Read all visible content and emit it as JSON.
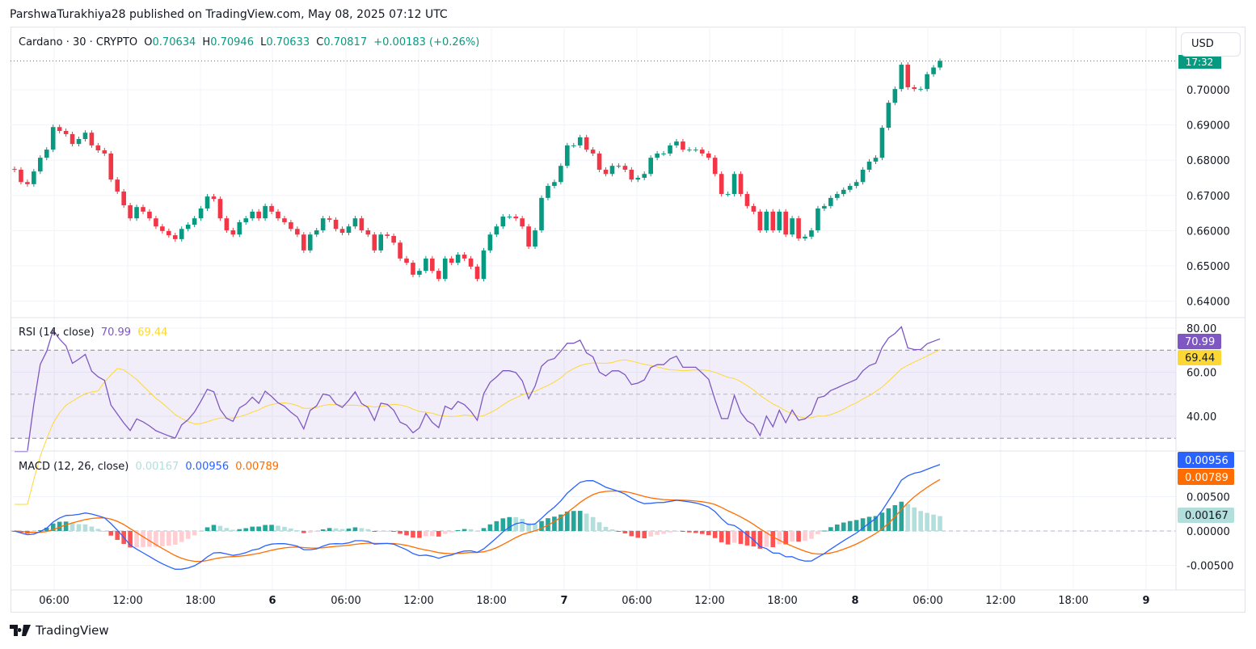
{
  "header": {
    "published": "ParshwaTurakhiya28 published on TradingView.com, May 08, 2025 07:12 UTC"
  },
  "legend": {
    "symbol": "Cardano · 30 · CRYPTO",
    "o_label": "O",
    "o": "0.70634",
    "h_label": "H",
    "h": "0.70946",
    "l_label": "L",
    "l": "0.70633",
    "c_label": "C",
    "c": "0.70817",
    "change": "+0.00183 (+0.26%)"
  },
  "currency_button": "USD",
  "last_price_badge": "17:32",
  "rsi_legend": {
    "title": "RSI (14, close)",
    "rsi": "70.99",
    "ma": "69.44"
  },
  "macd_legend": {
    "title": "MACD (12, 26, close)",
    "hist": "0.00167",
    "macd": "0.00956",
    "signal": "0.00789"
  },
  "branding": "TradingView",
  "colors": {
    "up": "#089981",
    "down": "#f23645",
    "rsi": "#7e57c2",
    "rsi_ma": "#fdd835",
    "macd": "#2962ff",
    "signal": "#ff6d00",
    "hist_up_strong": "#26a69a",
    "hist_up_weak": "#b2dfdb",
    "hist_down_strong": "#ff5252",
    "hist_down_weak": "#ffcdd2",
    "rsi_band": "#7e57c2"
  },
  "chart_data": [
    {
      "type": "candlestick",
      "interval": "30",
      "price_axis": {
        "ticks": [
          "0.70000",
          "0.69000",
          "0.68000",
          "0.67000",
          "0.66000",
          "0.65000",
          "0.64000"
        ],
        "ylim": [
          0.6375,
          0.7115
        ]
      },
      "x_ticks": [
        "06:00",
        "12:00",
        "18:00",
        "6",
        "06:00",
        "12:00",
        "18:00",
        "7",
        "06:00",
        "12:00",
        "18:00",
        "8",
        "06:00",
        "12:00",
        "18:00",
        "9"
      ],
      "first_open": 0.6775,
      "close": [
        0.6773,
        0.6738,
        0.6732,
        0.6768,
        0.6807,
        0.683,
        0.6894,
        0.6883,
        0.6874,
        0.6846,
        0.686,
        0.6878,
        0.6842,
        0.6828,
        0.6819,
        0.6745,
        0.6711,
        0.6672,
        0.6635,
        0.6667,
        0.6654,
        0.6635,
        0.6612,
        0.6599,
        0.6587,
        0.6576,
        0.6605,
        0.6617,
        0.6635,
        0.6663,
        0.6697,
        0.669,
        0.6635,
        0.6601,
        0.6589,
        0.6624,
        0.6635,
        0.6654,
        0.6635,
        0.667,
        0.6654,
        0.6635,
        0.6624,
        0.6605,
        0.6589,
        0.6544,
        0.6589,
        0.6601,
        0.6635,
        0.6631,
        0.6605,
        0.6594,
        0.6612,
        0.6635,
        0.6601,
        0.6589,
        0.6544,
        0.6589,
        0.6585,
        0.6566,
        0.6521,
        0.6509,
        0.6475,
        0.6486,
        0.6521,
        0.6486,
        0.6463,
        0.6521,
        0.6509,
        0.6532,
        0.6521,
        0.6498,
        0.6463,
        0.6544,
        0.6589,
        0.6612,
        0.664,
        0.664,
        0.6635,
        0.6612,
        0.6555,
        0.6601,
        0.6693,
        0.6727,
        0.6738,
        0.6784,
        0.6842,
        0.6842,
        0.6865,
        0.683,
        0.6819,
        0.6773,
        0.6761,
        0.6784,
        0.6784,
        0.6773,
        0.6745,
        0.675,
        0.6761,
        0.6807,
        0.6819,
        0.6819,
        0.6842,
        0.6853,
        0.683,
        0.683,
        0.683,
        0.6819,
        0.6807,
        0.6761,
        0.6704,
        0.6704,
        0.6761,
        0.6704,
        0.667,
        0.6654,
        0.6601,
        0.6654,
        0.6601,
        0.6654,
        0.6589,
        0.6635,
        0.6578,
        0.6583,
        0.6601,
        0.6663,
        0.667,
        0.6693,
        0.6704,
        0.6716,
        0.6727,
        0.6738,
        0.6773,
        0.6796,
        0.6807,
        0.6892,
        0.6963,
        0.7002,
        0.7071,
        0.7007,
        0.7002,
        0.7002,
        0.7044,
        0.7063,
        0.70817
      ]
    },
    {
      "type": "line",
      "title": "RSI (14, close)",
      "y_ticks": [
        "80.00",
        "60.00",
        "40.00"
      ],
      "ylim": [
        24,
        84
      ],
      "band": [
        30,
        70
      ],
      "midline": 50,
      "last": {
        "rsi": 70.99,
        "ma": 69.44
      }
    },
    {
      "type": "bar+line",
      "title": "MACD (12, 26, close)",
      "y_ticks": [
        "0.00500",
        "0.00000",
        "-0.00500"
      ],
      "ylim": [
        -0.0087,
        0.0112
      ],
      "last": {
        "histogram": 0.00167,
        "macd": 0.00956,
        "signal": 0.00789
      }
    }
  ]
}
